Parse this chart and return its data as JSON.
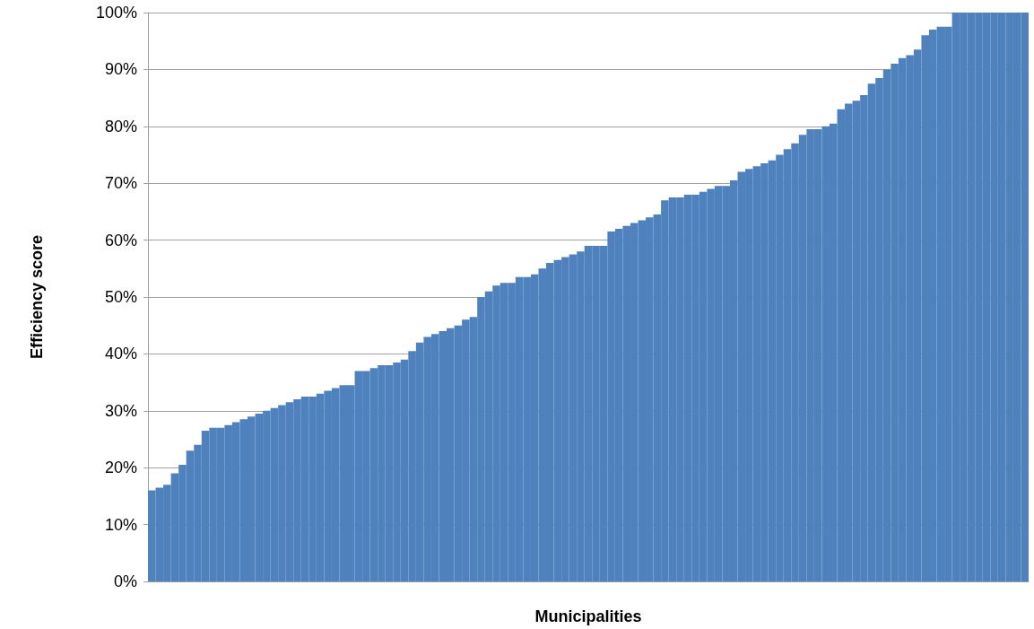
{
  "chart_data": {
    "type": "bar",
    "xlabel": "Municipalities",
    "ylabel": "Efficiency score",
    "categories": [
      null,
      null,
      null,
      null,
      null,
      null,
      null,
      null,
      null,
      null,
      null,
      null,
      null,
      null,
      null,
      null,
      null,
      null,
      null,
      null,
      null,
      null,
      null,
      null,
      null,
      null,
      null,
      null,
      null,
      null,
      null,
      null,
      null,
      null,
      null,
      null,
      null,
      null,
      null,
      null,
      null,
      null,
      null,
      null,
      null,
      null,
      null,
      null,
      null,
      null,
      null,
      null,
      null,
      null,
      null,
      null,
      null,
      null,
      null,
      null,
      null,
      null,
      null,
      null,
      null,
      null,
      null,
      null,
      null,
      null,
      null,
      null,
      null,
      null,
      null,
      null,
      null,
      null,
      null,
      null,
      null,
      null,
      null,
      null,
      null,
      null,
      null,
      null,
      null,
      null,
      null,
      null,
      null,
      null,
      null,
      null,
      null,
      null,
      null,
      null,
      null,
      null,
      null,
      null,
      null,
      null,
      null,
      null,
      null,
      null,
      null,
      null,
      null,
      null,
      null
    ],
    "values": [
      16,
      16.5,
      17,
      19,
      20.5,
      23,
      24,
      26.5,
      27,
      27,
      27.5,
      28,
      28.5,
      29,
      29.5,
      30,
      30.5,
      31,
      31.5,
      32,
      32.5,
      32.5,
      33,
      33.5,
      34,
      34.5,
      34.5,
      37,
      37,
      37.5,
      38,
      38,
      38.5,
      39,
      40.5,
      42,
      43,
      43.5,
      44,
      44.5,
      45,
      46,
      46.5,
      50,
      51,
      52,
      52.5,
      52.5,
      53.5,
      53.5,
      54,
      55,
      56,
      56.5,
      57,
      57.5,
      58,
      59,
      59,
      59,
      61.5,
      62,
      62.5,
      63,
      63.5,
      64,
      64.5,
      67,
      67.5,
      67.5,
      68,
      68,
      68.5,
      69,
      69.5,
      69.5,
      70.5,
      72,
      72.5,
      73,
      73.5,
      74,
      75,
      76,
      77,
      78.5,
      79.5,
      79.5,
      80,
      80.5,
      83,
      84,
      84.5,
      85.5,
      87.5,
      88.5,
      90,
      91,
      92,
      92.5,
      93.5,
      96,
      97,
      97.5,
      97.5,
      100,
      100,
      100,
      100,
      100,
      100,
      100,
      100,
      100,
      100
    ],
    "color": "#4f81bd",
    "ylim": [
      0,
      100
    ],
    "yticks": [
      {
        "value": 0,
        "label": "0%"
      },
      {
        "value": 10,
        "label": "10%"
      },
      {
        "value": 20,
        "label": "20%"
      },
      {
        "value": 30,
        "label": "30%"
      },
      {
        "value": 40,
        "label": "40%"
      },
      {
        "value": 50,
        "label": "50%"
      },
      {
        "value": 60,
        "label": "60%"
      },
      {
        "value": 70,
        "label": "70%"
      },
      {
        "value": 80,
        "label": "80%"
      },
      {
        "value": 90,
        "label": "90%"
      },
      {
        "value": 100,
        "label": "100%"
      }
    ],
    "grid": "y",
    "tick_labels": "y"
  }
}
